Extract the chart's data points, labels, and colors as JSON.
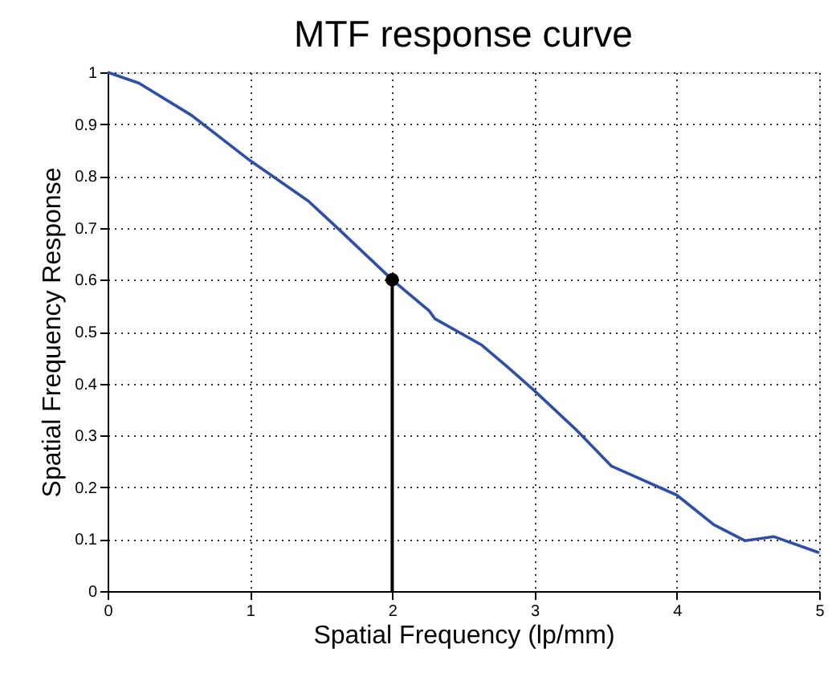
{
  "chart_data": {
    "type": "line",
    "title": "MTF response curve",
    "xlabel": "Spatial Frequency (lp/mm)",
    "ylabel": "Spatial Frequency Response",
    "xlim": [
      0,
      5
    ],
    "ylim": [
      0,
      1
    ],
    "xticks": [
      0,
      1,
      2,
      3,
      4,
      5
    ],
    "yticks": [
      0,
      0.1,
      0.2,
      0.3,
      0.4,
      0.5,
      0.6,
      0.7,
      0.8,
      0.9,
      1
    ],
    "grid": true,
    "line_style": "solid",
    "series": [
      {
        "color": "#2e4fa8",
        "x": [
          0,
          0.22,
          0.59,
          1.0,
          1.41,
          1.63,
          2.0,
          2.26,
          2.3,
          2.63,
          2.81,
          3.0,
          3.3,
          3.54,
          4.0,
          4.26,
          4.48,
          4.68,
          5.0
        ],
        "values": [
          1,
          0.979,
          0.917,
          0.83,
          0.752,
          0.696,
          0.6,
          0.54,
          0.525,
          0.474,
          0.432,
          0.386,
          0.309,
          0.241,
          0.185,
          0.128,
          0.097,
          0.105,
          0.074
        ]
      },
      {
        "type": "lollipop",
        "marker": "circle",
        "color": "#000000",
        "x": [
          2
        ],
        "values": [
          0.6
        ]
      }
    ]
  }
}
